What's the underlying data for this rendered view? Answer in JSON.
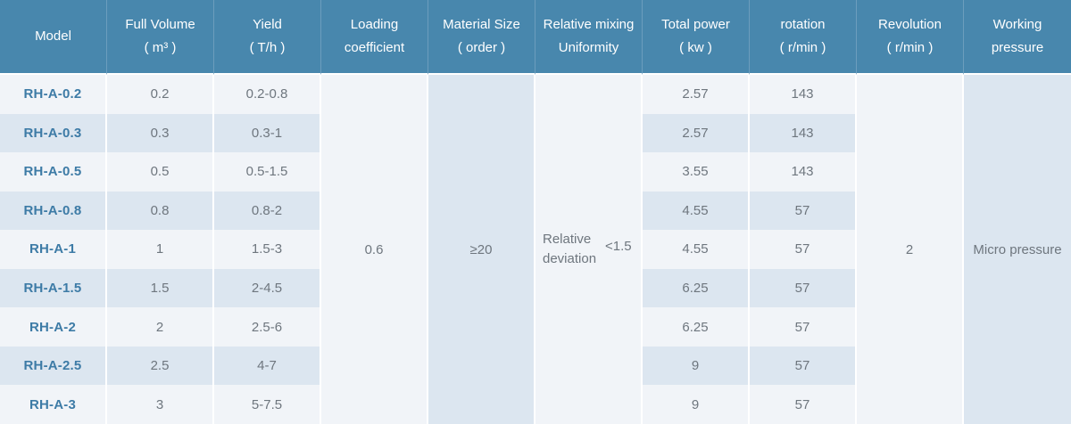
{
  "table": {
    "columns": [
      {
        "line1": "Model",
        "line2": ""
      },
      {
        "line1": "Full Volume",
        "line2": "( m³ )"
      },
      {
        "line1": "Yield",
        "line2": "( T/h )"
      },
      {
        "line1": "Loading",
        "line2": "coefficient"
      },
      {
        "line1": "Material Size",
        "line2": "( order )"
      },
      {
        "line1": "Relative mixing",
        "line2": "Uniformity"
      },
      {
        "line1": "Total power",
        "line2": "( kw )"
      },
      {
        "line1": "rotation",
        "line2": "( r/min )"
      },
      {
        "line1": "Revolution",
        "line2": "( r/min )"
      },
      {
        "line1": "Working",
        "line2": "pressure"
      }
    ],
    "rows": [
      {
        "model": "RH-A-0.2",
        "full_volume": "0.2",
        "yield": "0.2-0.8",
        "total_power": "2.57",
        "rotation": "143"
      },
      {
        "model": "RH-A-0.3",
        "full_volume": "0.3",
        "yield": "0.3-1",
        "total_power": "2.57",
        "rotation": "143"
      },
      {
        "model": "RH-A-0.5",
        "full_volume": "0.5",
        "yield": "0.5-1.5",
        "total_power": "3.55",
        "rotation": "143"
      },
      {
        "model": "RH-A-0.8",
        "full_volume": "0.8",
        "yield": "0.8-2",
        "total_power": "4.55",
        "rotation": "57"
      },
      {
        "model": "RH-A-1",
        "full_volume": "1",
        "yield": "1.5-3",
        "total_power": "4.55",
        "rotation": "57"
      },
      {
        "model": "RH-A-1.5",
        "full_volume": "1.5",
        "yield": "2-4.5",
        "total_power": "6.25",
        "rotation": "57"
      },
      {
        "model": "RH-A-2",
        "full_volume": "2",
        "yield": "2.5-6",
        "total_power": "6.25",
        "rotation": "57"
      },
      {
        "model": "RH-A-2.5",
        "full_volume": "2.5",
        "yield": "4-7",
        "total_power": "9",
        "rotation": "57"
      },
      {
        "model": "RH-A-3",
        "full_volume": "3",
        "yield": "5-7.5",
        "total_power": "9",
        "rotation": "57"
      }
    ],
    "merged": {
      "loading_coefficient": "0.6",
      "material_size": "≥20",
      "relative_mixing_label": "Relative deviation",
      "relative_mixing_value": "<1.5",
      "revolution": "2",
      "working_pressure": "Micro pressure"
    },
    "colors": {
      "header_bg": "#4887ad",
      "header_text": "#ffffff",
      "row_light": "#f1f4f8",
      "row_dark": "#dce6f0",
      "model_text": "#3d7ba6",
      "body_text": "#6e767e"
    }
  }
}
